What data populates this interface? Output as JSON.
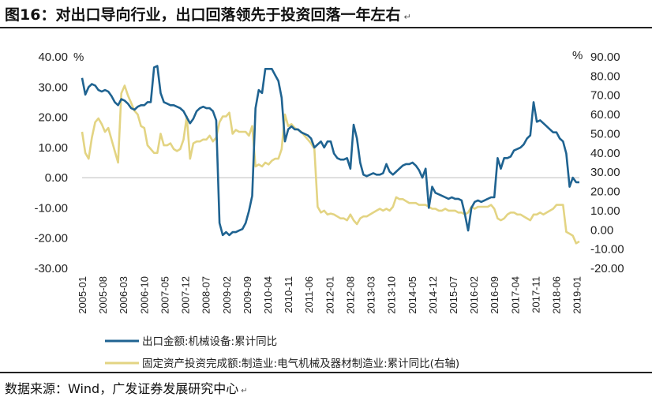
{
  "title": "图16：对出口导向行业，出口回落领先于投资回落一年左右",
  "source": "数据来源：Wind，广发证券发展研究中心",
  "chart_data": {
    "type": "line",
    "x_tick_labels": [
      "2005-01",
      "2005-08",
      "2006-03",
      "2006-10",
      "2007-05",
      "2007-12",
      "2008-07",
      "2009-02",
      "2009-09",
      "2010-04",
      "2010-11",
      "2011-06",
      "2012-01",
      "2012-08",
      "2013-03",
      "2013-10",
      "2014-05",
      "2014-12",
      "2015-07",
      "2016-02",
      "2016-09",
      "2017-04",
      "2017-11",
      "2018-06",
      "2019-01"
    ],
    "left_axis": {
      "unit": "%",
      "min": -30,
      "max": 40,
      "ticks": [
        "-30.00",
        "-20.00",
        "-10.00",
        "0.00",
        "10.00",
        "20.00",
        "30.00",
        "40.00"
      ]
    },
    "right_axis": {
      "unit": "%",
      "min": -20,
      "max": 90,
      "ticks": [
        "-20.00",
        "-10.00",
        "0.00",
        "10.00",
        "20.00",
        "30.00",
        "40.00",
        "50.00",
        "60.00",
        "70.00",
        "80.00",
        "90.00"
      ]
    },
    "series": [
      {
        "name": "出口金额:机械设备:累计同比",
        "axis": "left",
        "color": "#1f6391",
        "points": [
          [
            0,
            33
          ],
          [
            1,
            27.5
          ],
          [
            2,
            30
          ],
          [
            3,
            31
          ],
          [
            4,
            30.5
          ],
          [
            5,
            29
          ],
          [
            6,
            28.5
          ],
          [
            7,
            29
          ],
          [
            8,
            28.5
          ],
          [
            9,
            27
          ],
          [
            10,
            25
          ],
          [
            11,
            24
          ],
          [
            12,
            26
          ],
          [
            13,
            25.5
          ],
          [
            14,
            24.5
          ],
          [
            15,
            23
          ],
          [
            16,
            22.5
          ],
          [
            17,
            23.5
          ],
          [
            18,
            24
          ],
          [
            19,
            24
          ],
          [
            20,
            25
          ],
          [
            21,
            25
          ],
          [
            22,
            36.5
          ],
          [
            23,
            37
          ],
          [
            24,
            28
          ],
          [
            25,
            25
          ],
          [
            26,
            24.5
          ],
          [
            27,
            24
          ],
          [
            28,
            24
          ],
          [
            29,
            23.5
          ],
          [
            30,
            23
          ],
          [
            31,
            22
          ],
          [
            32,
            20
          ],
          [
            33,
            18
          ],
          [
            34,
            19.5
          ],
          [
            35,
            22
          ],
          [
            36,
            23
          ],
          [
            37,
            23.5
          ],
          [
            38,
            23
          ],
          [
            39,
            23
          ],
          [
            40,
            22
          ],
          [
            41,
            19
          ],
          [
            42,
            -15
          ],
          [
            43,
            -19
          ],
          [
            44,
            -18
          ],
          [
            45,
            -19
          ],
          [
            46,
            -18
          ],
          [
            47,
            -18
          ],
          [
            48,
            -17.5
          ],
          [
            49,
            -17
          ],
          [
            50,
            -15
          ],
          [
            51,
            -11
          ],
          [
            52,
            -6
          ],
          [
            53,
            23
          ],
          [
            54,
            29
          ],
          [
            55,
            28
          ],
          [
            56,
            36
          ],
          [
            57,
            36
          ],
          [
            58,
            36
          ],
          [
            59,
            34
          ],
          [
            60,
            32
          ],
          [
            61,
            26.5
          ],
          [
            62,
            12
          ],
          [
            63,
            16
          ],
          [
            64,
            17
          ],
          [
            65,
            16
          ],
          [
            66,
            16
          ],
          [
            67,
            15
          ],
          [
            68,
            14.5
          ],
          [
            69,
            14
          ],
          [
            70,
            13
          ],
          [
            71,
            10
          ],
          [
            72,
            11
          ],
          [
            73,
            12
          ],
          [
            74,
            10
          ],
          [
            75,
            12
          ],
          [
            76,
            12
          ],
          [
            77,
            8
          ],
          [
            78,
            6.5
          ],
          [
            79,
            6
          ],
          [
            80,
            6
          ],
          [
            81,
            6.5
          ],
          [
            82,
            3
          ],
          [
            83,
            17.5
          ],
          [
            84,
            13
          ],
          [
            85,
            5
          ],
          [
            86,
            1
          ],
          [
            87,
            0.5
          ],
          [
            88,
            1
          ],
          [
            89,
            1.5
          ],
          [
            90,
            1
          ],
          [
            91,
            1
          ],
          [
            92,
            1.5
          ],
          [
            93,
            4.5
          ],
          [
            94,
            2
          ],
          [
            95,
            1
          ],
          [
            96,
            2
          ],
          [
            97,
            3
          ],
          [
            98,
            4
          ],
          [
            99,
            4.5
          ],
          [
            100,
            4.5
          ],
          [
            101,
            5
          ],
          [
            102,
            4
          ],
          [
            103,
            2.5
          ],
          [
            104,
            0
          ],
          [
            105,
            3
          ],
          [
            106,
            -10
          ],
          [
            107,
            -3
          ],
          [
            108,
            -5
          ],
          [
            109,
            -5.5
          ],
          [
            110,
            -6
          ],
          [
            111,
            -6.5
          ],
          [
            112,
            -7
          ],
          [
            113,
            -6.5
          ],
          [
            114,
            -7
          ],
          [
            115,
            -7
          ],
          [
            116,
            -7.5
          ],
          [
            117,
            -12
          ],
          [
            118,
            -17.5
          ],
          [
            119,
            -10
          ],
          [
            120,
            -8
          ],
          [
            121,
            -7.5
          ],
          [
            122,
            -8
          ],
          [
            123,
            -7.5
          ],
          [
            124,
            -7
          ],
          [
            125,
            -6.5
          ],
          [
            126,
            -6.5
          ],
          [
            127,
            6.5
          ],
          [
            128,
            3
          ],
          [
            129,
            6.5
          ],
          [
            130,
            6.5
          ],
          [
            131,
            7
          ],
          [
            132,
            9
          ],
          [
            133,
            9.5
          ],
          [
            134,
            10
          ],
          [
            135,
            11
          ],
          [
            136,
            13
          ],
          [
            137,
            14
          ],
          [
            138,
            25
          ],
          [
            139,
            18.5
          ],
          [
            140,
            19
          ],
          [
            141,
            18
          ],
          [
            142,
            17
          ],
          [
            143,
            16
          ],
          [
            144,
            15
          ],
          [
            145,
            15
          ],
          [
            146,
            13
          ],
          [
            147,
            12
          ],
          [
            148,
            8
          ],
          [
            149,
            -3
          ],
          [
            150,
            0
          ],
          [
            151,
            -1.5
          ],
          [
            152,
            -1.5
          ]
        ]
      },
      {
        "name": "固定资产投资完成额:制造业:电气机械及器材制造业:累计同比(右轴)",
        "axis": "right",
        "color": "#e3d483",
        "points": [
          [
            0,
            51
          ],
          [
            1,
            40
          ],
          [
            2,
            37
          ],
          [
            3,
            48
          ],
          [
            4,
            56
          ],
          [
            5,
            58
          ],
          [
            6,
            55
          ],
          [
            7,
            51
          ],
          [
            8,
            53
          ],
          [
            9,
            47
          ],
          [
            10,
            41
          ],
          [
            11,
            35
          ],
          [
            12,
            71
          ],
          [
            13,
            75
          ],
          [
            14,
            70
          ],
          [
            15,
            66
          ],
          [
            16,
            62
          ],
          [
            17,
            60
          ],
          [
            18,
            54
          ],
          [
            19,
            53
          ],
          [
            20,
            44
          ],
          [
            21,
            42
          ],
          [
            22,
            40
          ],
          [
            23,
            40
          ],
          [
            24,
            50
          ],
          [
            25,
            44
          ],
          [
            26,
            44
          ],
          [
            27,
            45
          ],
          [
            28,
            42
          ],
          [
            29,
            41
          ],
          [
            30,
            42
          ],
          [
            31,
            47
          ],
          [
            32,
            59
          ],
          [
            33,
            37
          ],
          [
            34,
            45
          ],
          [
            35,
            46
          ],
          [
            36,
            46
          ],
          [
            37,
            47
          ],
          [
            38,
            47
          ],
          [
            39,
            49
          ],
          [
            40,
            46
          ],
          [
            41,
            48
          ],
          [
            42,
            56
          ],
          [
            43,
            59
          ],
          [
            44,
            59
          ],
          [
            45,
            61
          ],
          [
            46,
            50
          ],
          [
            47,
            52
          ],
          [
            48,
            51
          ],
          [
            49,
            51
          ],
          [
            50,
            51
          ],
          [
            51,
            49
          ],
          [
            52,
            54
          ],
          [
            53,
            33
          ],
          [
            54,
            34
          ],
          [
            55,
            33
          ],
          [
            56,
            35
          ],
          [
            57,
            34
          ],
          [
            58,
            36
          ],
          [
            59,
            37
          ],
          [
            60,
            37
          ],
          [
            61,
            42
          ],
          [
            62,
            60
          ],
          [
            63,
            54
          ],
          [
            64,
            55
          ],
          [
            65,
            53
          ],
          [
            66,
            52
          ],
          [
            67,
            51
          ],
          [
            68,
            49
          ],
          [
            69,
            47
          ],
          [
            70,
            45
          ],
          [
            71,
            42
          ],
          [
            72,
            12
          ],
          [
            73,
            9
          ],
          [
            74,
            10
          ],
          [
            75,
            8
          ],
          [
            76,
            8.5
          ],
          [
            77,
            8
          ],
          [
            78,
            7
          ],
          [
            79,
            6
          ],
          [
            80,
            6
          ],
          [
            81,
            5
          ],
          [
            82,
            8
          ],
          [
            83,
            5
          ],
          [
            84,
            3
          ],
          [
            85,
            6
          ],
          [
            86,
            7
          ],
          [
            87,
            7
          ],
          [
            88,
            8
          ],
          [
            89,
            9
          ],
          [
            90,
            10
          ],
          [
            91,
            11
          ],
          [
            92,
            10
          ],
          [
            93,
            11
          ],
          [
            94,
            10
          ],
          [
            95,
            12
          ],
          [
            96,
            17
          ],
          [
            97,
            16
          ],
          [
            98,
            16
          ],
          [
            99,
            15
          ],
          [
            100,
            14
          ],
          [
            101,
            14
          ],
          [
            102,
            14
          ],
          [
            103,
            13
          ],
          [
            104,
            13
          ],
          [
            105,
            13
          ],
          [
            106,
            12
          ],
          [
            107,
            11
          ],
          [
            108,
            11
          ],
          [
            109,
            10
          ],
          [
            110,
            10
          ],
          [
            111,
            11
          ],
          [
            112,
            10
          ],
          [
            113,
            10
          ],
          [
            114,
            10
          ],
          [
            115,
            9
          ],
          [
            116,
            9
          ],
          [
            117,
            8
          ],
          [
            118,
            9
          ],
          [
            119,
            12
          ],
          [
            120,
            11
          ],
          [
            121,
            12
          ],
          [
            122,
            12
          ],
          [
            123,
            12
          ],
          [
            124,
            12
          ],
          [
            125,
            13
          ],
          [
            126,
            11
          ],
          [
            127,
            6
          ],
          [
            128,
            5
          ],
          [
            129,
            6
          ],
          [
            130,
            8
          ],
          [
            131,
            9
          ],
          [
            132,
            9
          ],
          [
            133,
            8
          ],
          [
            134,
            8
          ],
          [
            135,
            7
          ],
          [
            136,
            6
          ],
          [
            137,
            5
          ],
          [
            138,
            8
          ],
          [
            139,
            8
          ],
          [
            140,
            9
          ],
          [
            141,
            8
          ],
          [
            142,
            9
          ],
          [
            143,
            10
          ],
          [
            144,
            11
          ],
          [
            145,
            13
          ],
          [
            146,
            13
          ],
          [
            147,
            13
          ],
          [
            148,
            -1
          ],
          [
            149,
            -2
          ],
          [
            150,
            -3
          ],
          [
            151,
            -7
          ],
          [
            152,
            -6
          ]
        ]
      }
    ]
  }
}
